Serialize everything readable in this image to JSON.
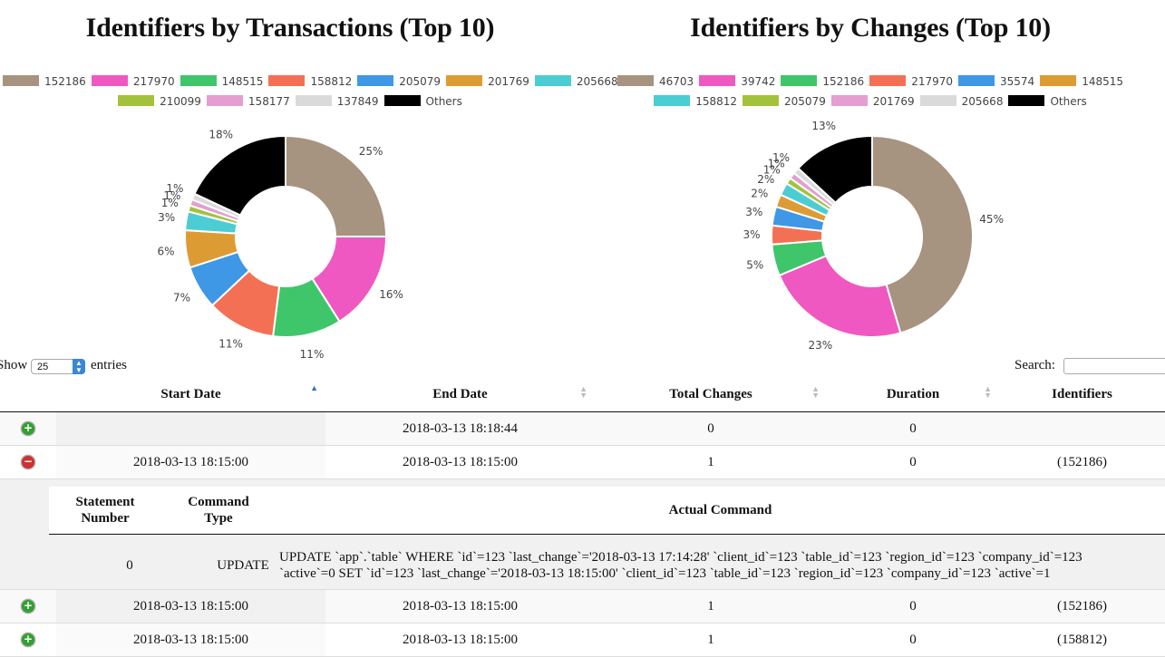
{
  "chart_data": [
    {
      "type": "pie",
      "title": "Identifiers by Transactions (Top 10)",
      "legend_placement": "top",
      "categories": [
        "152186",
        "217970",
        "148515",
        "158812",
        "205079",
        "201769",
        "205668",
        "210099",
        "158177",
        "137849",
        "Others"
      ],
      "values": [
        25,
        16,
        11,
        11,
        7,
        6,
        3,
        1,
        1,
        1,
        18
      ],
      "labels": [
        "25%",
        "16%",
        "11%",
        "11%",
        "7%",
        "6%",
        "3%",
        "1%",
        "1%",
        "1%",
        "18%"
      ],
      "colors": [
        "#a69380",
        "#ef58c0",
        "#3fc66a",
        "#f47055",
        "#3e98e6",
        "#dd9c33",
        "#4bcdd3",
        "#a3c23c",
        "#e39ed2",
        "#dadada",
        "#000000"
      ]
    },
    {
      "type": "pie",
      "title": "Identifiers by Changes (Top 10)",
      "legend_placement": "top",
      "categories": [
        "46703",
        "39742",
        "152186",
        "217970",
        "35574",
        "148515",
        "158812",
        "205079",
        "201769",
        "205668",
        "Others"
      ],
      "values": [
        45,
        23,
        5,
        3,
        3,
        2,
        2,
        1,
        1,
        1,
        13
      ],
      "labels": [
        "45%",
        "23%",
        "5%",
        "3%",
        "3%",
        "2%",
        "2%",
        "1%",
        "1%",
        "1%",
        "13%"
      ],
      "colors": [
        "#a69380",
        "#ef58c0",
        "#3fc66a",
        "#f47055",
        "#3e98e6",
        "#dd9c33",
        "#4bcdd3",
        "#a3c23c",
        "#e39ed2",
        "#dadada",
        "#000000"
      ]
    }
  ],
  "controls": {
    "show_label": "Show",
    "page_size": "25",
    "entries_label": "entries",
    "search_label": "Search:"
  },
  "table": {
    "columns": [
      "Start Date",
      "End Date",
      "Total Changes",
      "Duration",
      "Identifiers"
    ],
    "rows": [
      {
        "start": "",
        "end": "2018-03-13 18:18:44",
        "total": "0",
        "duration": "0",
        "ids": ""
      },
      {
        "start": "2018-03-13 18:15:00",
        "end": "2018-03-13 18:15:00",
        "total": "1",
        "duration": "0",
        "ids": "(152186)"
      },
      {
        "start": "2018-03-13 18:15:00",
        "end": "2018-03-13 18:15:00",
        "total": "1",
        "duration": "0",
        "ids": "(152186)"
      },
      {
        "start": "2018-03-13 18:15:00",
        "end": "2018-03-13 18:15:00",
        "total": "1",
        "duration": "0",
        "ids": "(158812)"
      }
    ],
    "child": {
      "col_statement_1": "Statement",
      "col_statement_2": "Number",
      "col_type_1": "Command",
      "col_type_2": "Type",
      "col_command": "Actual Command",
      "row": {
        "number": "0",
        "type": "UPDATE",
        "command_line1": "UPDATE `app`.`table` WHERE `id`=123 `last_change`='2018-03-13 17:14:28' `client_id`=123 `table_id`=123 `region_id`=123 `company_id`=123",
        "command_line2": "`active`=0 SET `id`=123 `last_change`='2018-03-13 18:15:00' `client_id`=123 `table_id`=123 `region_id`=123 `company_id`=123 `active`=1"
      }
    }
  }
}
